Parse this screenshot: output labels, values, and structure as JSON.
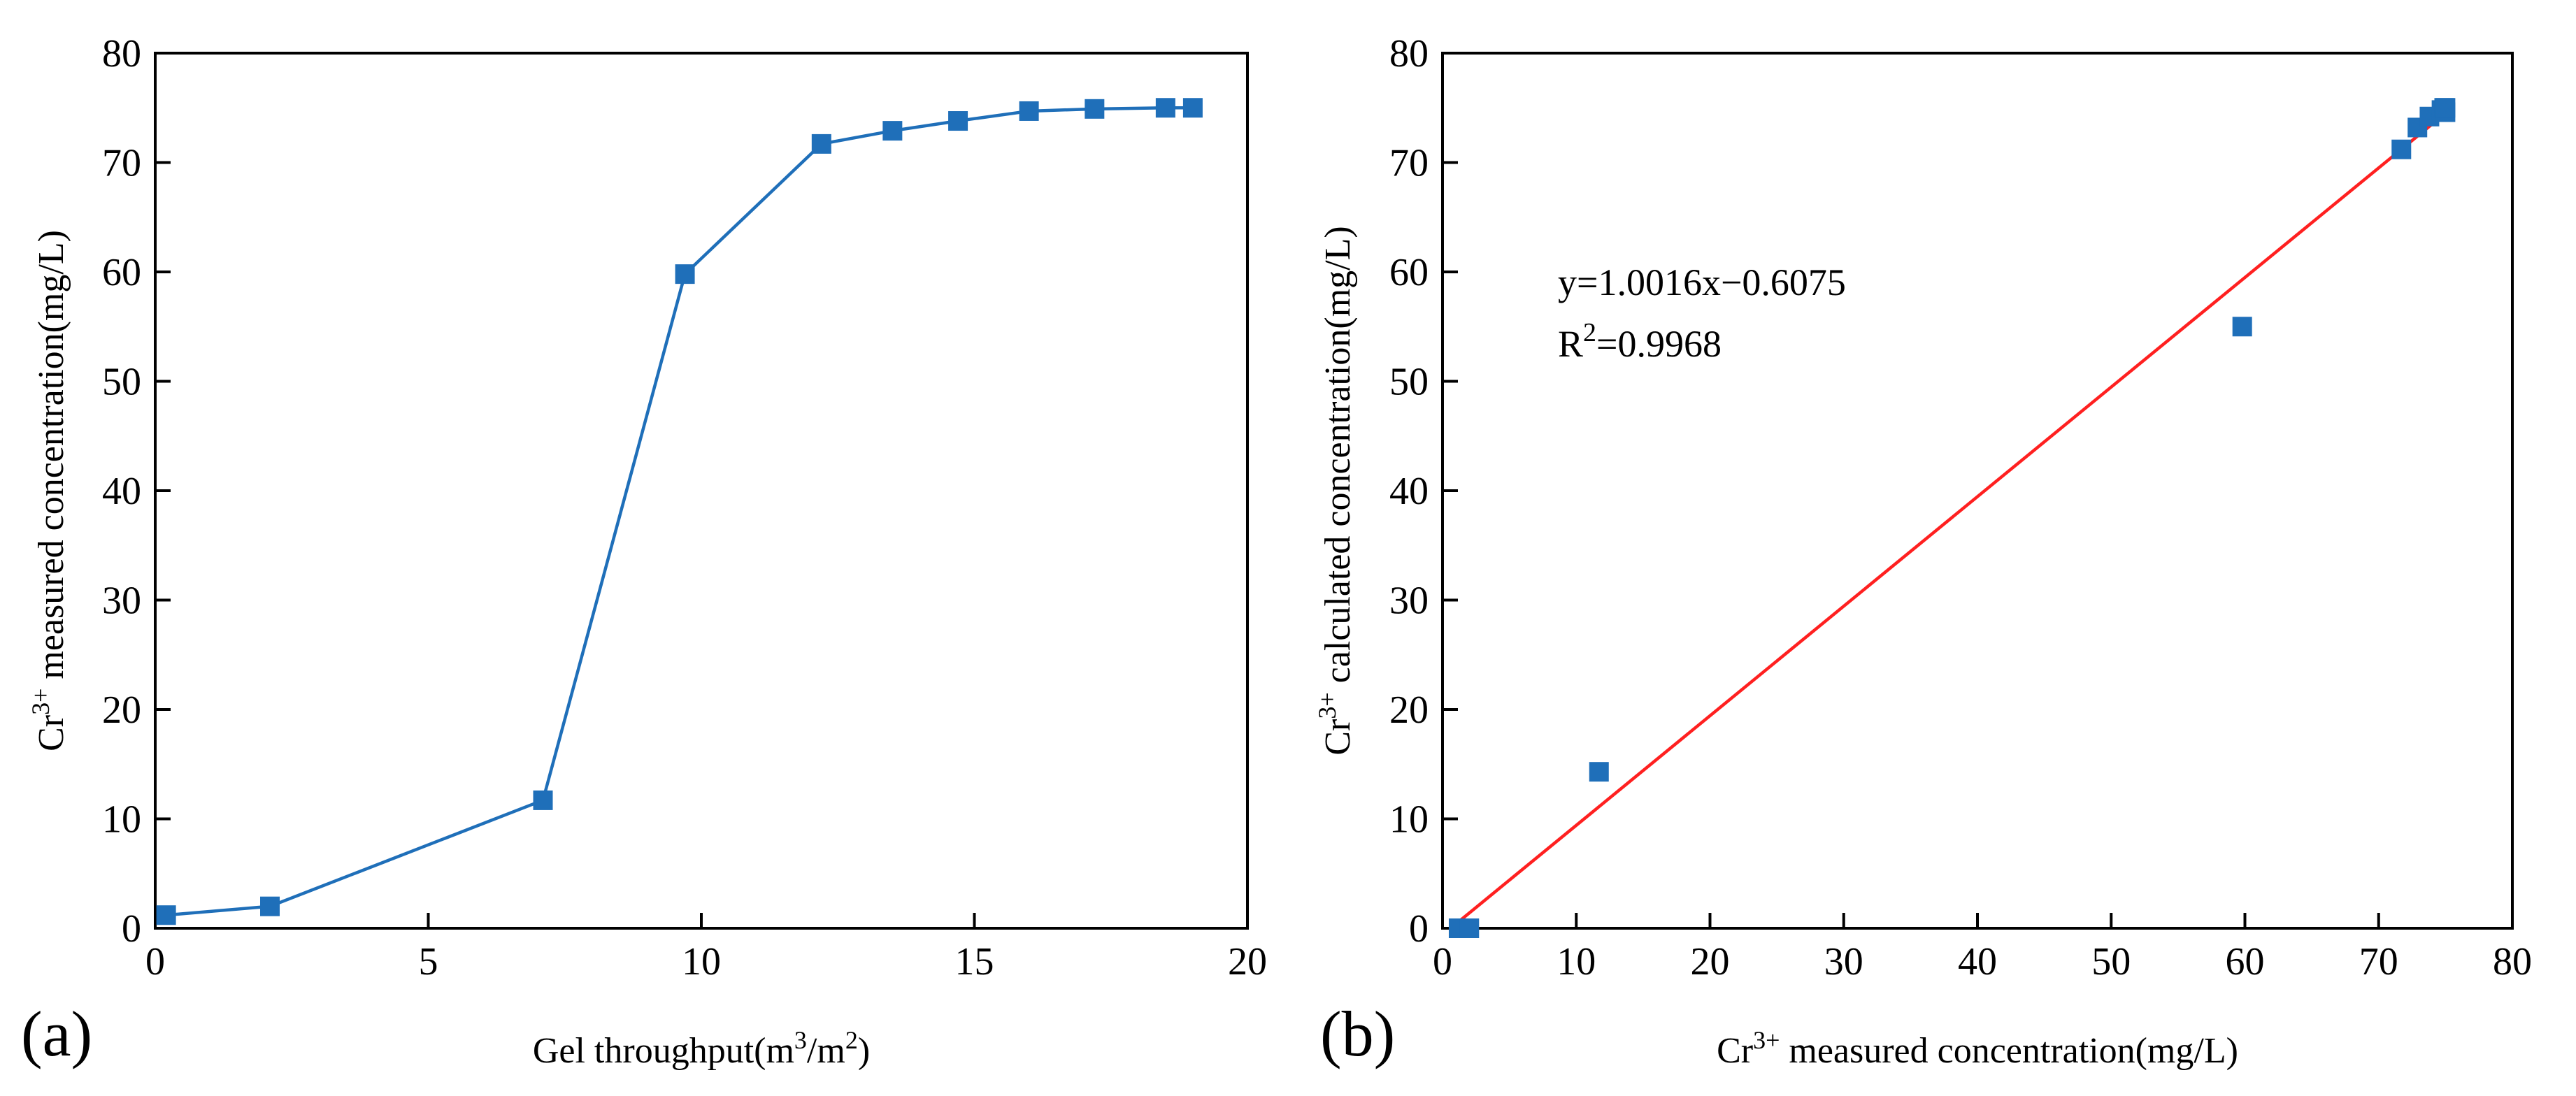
{
  "chart_data": [
    {
      "type": "line",
      "panel_label": "(a)",
      "title": "",
      "xlabel": {
        "pre": "Gel throughput(m",
        "sup1": "3",
        "mid": "/m",
        "sup2": "2",
        "post": ")"
      },
      "ylabel": {
        "pre": "Cr",
        "sup": "3+",
        "post": " measured concentration(mg/L)"
      },
      "xlim": [
        0,
        20
      ],
      "ylim": [
        0,
        80
      ],
      "xticks": [
        "0",
        "5",
        "10",
        "15",
        "20"
      ],
      "yticks": [
        "0",
        "10",
        "20",
        "30",
        "40",
        "50",
        "60",
        "70",
        "80"
      ],
      "grid": false,
      "color": "#1f6fb9",
      "series": [
        {
          "name": "Cr3+ measured concentration",
          "x": [
            0.2,
            2.1,
            7.1,
            9.7,
            12.2,
            13.5,
            14.7,
            16.0,
            17.2,
            18.5,
            19.0
          ],
          "y": [
            1.2,
            2.0,
            11.7,
            59.8,
            71.7,
            72.9,
            73.8,
            74.7,
            74.9,
            75.0,
            75.0
          ]
        }
      ]
    },
    {
      "type": "scatter",
      "panel_label": "(b)",
      "title": "",
      "xlabel": {
        "pre": "Cr",
        "sup": "3+",
        "post": " measured concentration(mg/L)"
      },
      "ylabel": {
        "pre": "Cr",
        "sup": "3+",
        "post": " calculated concentration(mg/L)"
      },
      "xlim": [
        0,
        80
      ],
      "ylim": [
        0,
        80
      ],
      "xticks": [
        "0",
        "10",
        "20",
        "30",
        "40",
        "50",
        "60",
        "70",
        "80"
      ],
      "yticks": [
        "0",
        "10",
        "20",
        "30",
        "40",
        "50",
        "60",
        "70",
        "80"
      ],
      "grid": false,
      "point_color": "#1f6fb9",
      "fit_color": "#ff2020",
      "points": {
        "x": [
          1.2,
          2.0,
          11.7,
          59.8,
          71.7,
          72.9,
          73.8,
          74.7,
          74.9,
          75.0,
          75.0
        ],
        "y": [
          0.0,
          0.0,
          14.3,
          55.0,
          71.2,
          73.2,
          74.2,
          74.8,
          75.0,
          74.6,
          75.0
        ]
      },
      "fit": {
        "slope": 1.0016,
        "intercept": -0.6075,
        "x_range": [
          1.0,
          75.0
        ]
      },
      "annotation": {
        "equation": "y=1.0016x−0.6075",
        "r2_pre": "R",
        "r2_sup": "2",
        "r2_post": "=0.9968"
      }
    }
  ]
}
